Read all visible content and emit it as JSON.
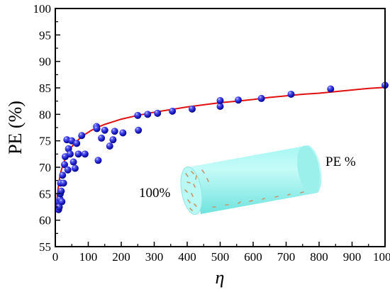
{
  "chart_data": {
    "type": "scatter",
    "xlabel": "η",
    "ylabel": "PE (%)",
    "xlim": [
      0,
      1000
    ],
    "ylim": [
      55,
      100
    ],
    "xticks": [
      "0",
      "100",
      "200",
      "300",
      "400",
      "500",
      "600",
      "700",
      "800",
      "900",
      "1000"
    ],
    "yticks": [
      "55",
      "60",
      "65",
      "70",
      "75",
      "80",
      "85",
      "90",
      "95",
      "100"
    ],
    "grid": false,
    "colors": {
      "points": "#2a2ad6",
      "fit": "#e01010",
      "cylinder": "#8ef2ee"
    },
    "series": [
      {
        "kind": "scatter",
        "x": [
          10,
          10,
          12,
          14,
          15,
          16,
          18,
          20,
          22,
          25,
          28,
          30,
          35,
          38,
          40,
          45,
          50,
          55,
          60,
          65,
          70,
          80,
          90,
          125,
          126,
          130,
          140,
          150,
          165,
          175,
          180,
          205,
          250,
          252,
          280,
          310,
          355,
          415,
          500,
          500,
          555,
          625,
          715,
          835,
          1000
        ],
        "y": [
          62,
          63.5,
          62.5,
          64,
          65,
          67,
          65.5,
          63.5,
          68.5,
          67,
          70.5,
          72,
          75.2,
          69.5,
          73.5,
          72.5,
          75,
          71,
          69.8,
          74.5,
          72.5,
          76,
          72.5,
          77.7,
          77.3,
          71.3,
          75.5,
          77,
          74,
          75.2,
          76.8,
          76.5,
          79.8,
          77,
          80,
          80.2,
          80.6,
          81,
          81.5,
          82.6,
          82.7,
          83,
          83.8,
          84.8,
          85.5
        ]
      },
      {
        "kind": "line",
        "x": [
          3,
          5,
          8,
          12,
          16,
          20,
          25,
          30,
          40,
          50,
          60,
          75,
          90,
          110,
          130,
          150,
          175,
          200,
          250,
          300,
          350,
          400,
          450,
          500,
          550,
          600,
          650,
          700,
          750,
          800,
          850,
          900,
          950,
          1000
        ],
        "y": [
          62.1,
          63.9,
          65.8,
          67.6,
          68.9,
          69.8,
          70.8,
          71.6,
          72.9,
          73.9,
          74.6,
          75.5,
          76.2,
          77.0,
          77.6,
          78.1,
          78.6,
          79.1,
          79.8,
          80.4,
          80.9,
          81.4,
          81.8,
          82.2,
          82.5,
          82.8,
          83.2,
          83.5,
          83.8,
          84.0,
          84.3,
          84.6,
          84.9,
          85.1
        ]
      }
    ],
    "annotations": {
      "left": "100%",
      "right": "PE %"
    }
  }
}
